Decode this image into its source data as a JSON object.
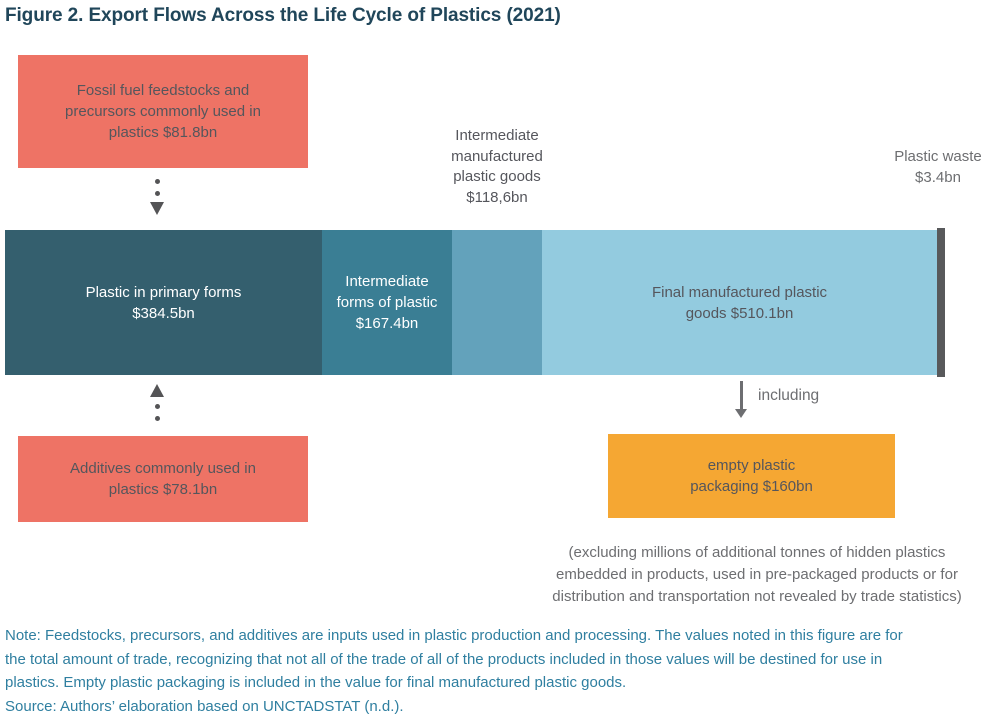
{
  "title": "Figure 2. Export Flows Across the Life Cycle of Plastics (2021)",
  "boxes": {
    "feedstocks": {
      "name": "Fossil fuel feedstocks and precursors commonly used in plastics",
      "value": "$81.8bn",
      "lines": [
        "Fossil fuel feedstocks and",
        "precursors commonly used in",
        "plastics $81.8bn"
      ]
    },
    "additives": {
      "name": "Additives commonly used in plastics",
      "value": "$78.1bn",
      "lines": [
        "Additives commonly used in",
        "plastics $78.1bn"
      ]
    },
    "packaging": {
      "name": "empty plastic packaging",
      "value": "$160bn",
      "lines": [
        "empty plastic",
        "packaging $160bn"
      ]
    }
  },
  "bar": {
    "segments": [
      {
        "name": "Plastic in primary forms",
        "value": "$384.5bn",
        "color": "#345F6E",
        "lines": [
          "Plastic in primary forms",
          "$384.5bn"
        ]
      },
      {
        "name": "Intermediate forms of plastic",
        "value": "$167.4bn",
        "color": "#3A7E94",
        "lines": [
          "Intermediate",
          "forms of plastic",
          "$167.4bn"
        ]
      },
      {
        "name": "Intermediate manufactured plastic goods",
        "value": "$118,6bn",
        "color": "#63A2BB",
        "lines": []
      },
      {
        "name": "Final manufactured plastic goods",
        "value": "$510.1bn",
        "color": "#93CBDF",
        "lines": [
          "Final manufactured plastic",
          "goods $510.1bn"
        ]
      },
      {
        "name": "Plastic waste",
        "value": "$3.4bn",
        "color": "#58595B",
        "lines": []
      }
    ]
  },
  "labels": {
    "intermediate_manufactured": {
      "lines": [
        "Intermediate",
        "manufactured",
        "plastic goods",
        "$118,6bn"
      ]
    },
    "plastic_waste": {
      "lines": [
        "Plastic waste",
        "$3.4bn"
      ]
    },
    "including": "including",
    "excluding": {
      "lines": [
        "(excluding millions of additional tonnes of hidden plastics",
        "embedded in products, used in pre-packaged products or for",
        "distribution and transportation not revealed by trade statistics)"
      ]
    }
  },
  "notes": {
    "note_lines": [
      "Note: Feedstocks, precursors, and additives are inputs used in plastic production and processing. The values noted in this figure are for",
      "the total amount of trade, recognizing that not all of the trade of all of the products included in those values will be destined for use in",
      "plastics. Empty plastic packaging is included in the value for final manufactured plastic goods."
    ],
    "source": "Source: Authors’ elaboration based on UNCTADSTAT (n.d.)."
  },
  "colors": {
    "salmon_box": "#EE7365",
    "orange_box": "#F5A733",
    "bar_dark_teal": "#345F6E",
    "bar_teal": "#3A7E94",
    "bar_medium_blue": "#63A2BB",
    "bar_light_blue": "#93CBDF",
    "waste_gray": "#58595B",
    "title_text": "#20465A",
    "note_text": "#2F7FA0",
    "gray_text": "#6D6E71",
    "dark_text": "#55565C"
  }
}
